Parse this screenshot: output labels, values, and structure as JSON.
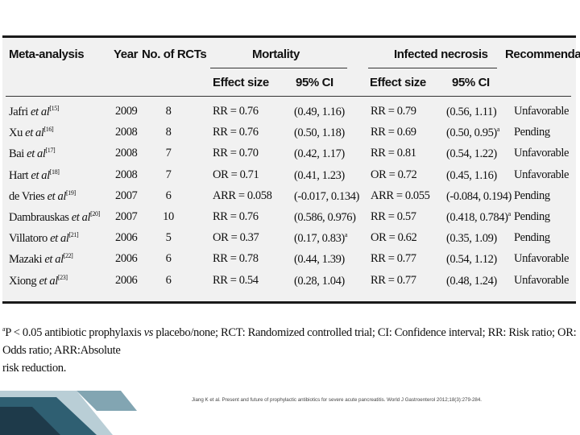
{
  "table": {
    "headers": {
      "meta_analysis": "Meta-analysis",
      "year": "Year",
      "num_rcts": "No. of RCTs",
      "mortality": "Mortality",
      "infected_necrosis": "Infected necrosis",
      "recommendation": "Recommendation",
      "effect_size": "Effect size",
      "ci": "95% CI"
    },
    "rows": [
      {
        "author": "Jafri",
        "etal": "et al",
        "ref": "[15]",
        "year": "2009",
        "rcts": "8",
        "mort_es": "RR = 0.76",
        "mort_ci": "(0.49, 1.16)",
        "mort_sup": "",
        "inf_es": "RR = 0.79",
        "inf_ci": "(0.56, 1.11)",
        "inf_sup": "",
        "rec": "Unfavorable"
      },
      {
        "author": "Xu",
        "etal": "et al",
        "ref": "[16]",
        "year": "2008",
        "rcts": "8",
        "mort_es": "RR = 0.76",
        "mort_ci": "(0.50, 1.18)",
        "mort_sup": "",
        "inf_es": "RR = 0.69",
        "inf_ci": "(0.50, 0.95)",
        "inf_sup": "a",
        "rec": "Pending"
      },
      {
        "author": "Bai",
        "etal": "et al",
        "ref": "[17]",
        "year": "2008",
        "rcts": "7",
        "mort_es": "RR = 0.70",
        "mort_ci": "(0.42, 1.17)",
        "mort_sup": "",
        "inf_es": "RR = 0.81",
        "inf_ci": "(0.54, 1.22)",
        "inf_sup": "",
        "rec": "Unfavorable"
      },
      {
        "author": "Hart",
        "etal": "et al",
        "ref": "[18]",
        "year": "2008",
        "rcts": "7",
        "mort_es": "OR = 0.71",
        "mort_ci": "(0.41, 1.23)",
        "mort_sup": "",
        "inf_es": "OR = 0.72",
        "inf_ci": "(0.45, 1.16)",
        "inf_sup": "",
        "rec": "Unfavorable"
      },
      {
        "author": "de Vries",
        "etal": "et al",
        "ref": "[19]",
        "year": "2007",
        "rcts": "6",
        "mort_es": "ARR = 0.058",
        "mort_ci": "(-0.017, 0.134)",
        "mort_sup": "",
        "inf_es": "ARR = 0.055",
        "inf_ci": "(-0.084, 0.194)",
        "inf_sup": "",
        "rec": "Pending"
      },
      {
        "author": "Dambrauskas",
        "etal": "et al",
        "ref": "[20]",
        "year": "2007",
        "rcts": "10",
        "mort_es": "RR = 0.76",
        "mort_ci": "(0.586, 0.976)",
        "mort_sup": "",
        "inf_es": "RR = 0.57",
        "inf_ci": "(0.418, 0.784)",
        "inf_sup": "a",
        "rec": "Pending"
      },
      {
        "author": "Villatoro",
        "etal": "et al",
        "ref": "[21]",
        "year": "2006",
        "rcts": "5",
        "mort_es": "OR = 0.37",
        "mort_ci": "(0.17, 0.83)",
        "mort_sup": "a",
        "inf_es": "OR = 0.62",
        "inf_ci": "(0.35, 1.09)",
        "inf_sup": "",
        "rec": "Pending"
      },
      {
        "author": "Mazaki",
        "etal": "et al",
        "ref": "[22]",
        "year": "2006",
        "rcts": "6",
        "mort_es": "RR = 0.78",
        "mort_ci": "(0.44, 1.39)",
        "mort_sup": "",
        "inf_es": "RR = 0.77",
        "inf_ci": "(0.54, 1.12)",
        "inf_sup": "",
        "rec": "Unfavorable"
      },
      {
        "author": "Xiong",
        "etal": "et al",
        "ref": "[23]",
        "year": "2006",
        "rcts": "6",
        "mort_es": "RR = 0.54",
        "mort_ci": "(0.28, 1.04)",
        "mort_sup": "",
        "inf_es": "RR = 0.77",
        "inf_ci": "(0.48, 1.24)",
        "inf_sup": "",
        "rec": "Unfavorable"
      }
    ]
  },
  "footnote": {
    "marker": "a",
    "line1": "P < 0.05 antibiotic prophylaxis ",
    "vs": "vs",
    "line1b": " placebo/none; RCT: Randomized controlled trial; CI: Confidence interval; RR: Risk ratio; OR: Odds ratio; ARR:Absolute",
    "line2": "risk reduction."
  },
  "citation": "Jiang K et al. Present and future of prophylactic antibiotics for severe acute pancreatitis. World J Gastroenterol 2012;18(3):279-284.",
  "colors": {
    "panel": "#f1f1f1",
    "deco_dark": "#1e3a4a",
    "deco_mid": "#2f5f72",
    "deco_light": "#7fa6b4"
  }
}
